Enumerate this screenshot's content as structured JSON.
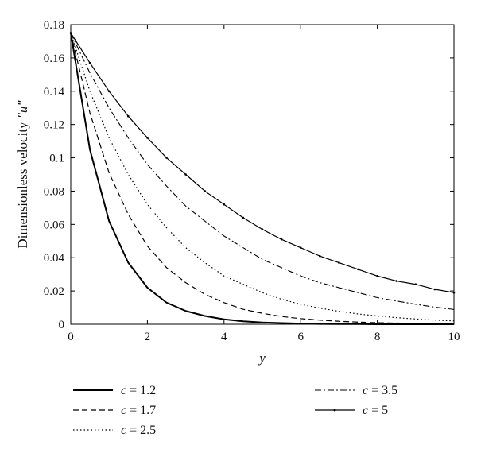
{
  "chart_data": {
    "type": "line",
    "xlabel": "y",
    "ylabel_prefix": "Dimensionless velocity ",
    "ylabel_var": "\"u\"",
    "xlim": [
      0,
      10
    ],
    "ylim": [
      0,
      0.18
    ],
    "xticks": [
      0,
      2,
      4,
      6,
      8,
      10
    ],
    "xtick_labels": [
      "0",
      "2",
      "4",
      "6",
      "8",
      "10"
    ],
    "yticks": [
      0,
      0.02,
      0.04,
      0.06,
      0.08,
      0.1,
      0.12,
      0.14,
      0.16,
      0.18
    ],
    "ytick_labels": [
      "0",
      "0.02",
      "0.04",
      "0.06",
      "0.08",
      "0.1",
      "0.12",
      "0.14",
      "0.16",
      "0.18"
    ],
    "grid": false,
    "legend_position": "below",
    "x": [
      0,
      0.5,
      1,
      1.5,
      2,
      2.5,
      3,
      3.5,
      4,
      4.5,
      5,
      5.5,
      6,
      6.5,
      7,
      7.5,
      8,
      8.5,
      9,
      9.5,
      10
    ],
    "series": [
      {
        "name": "c = 1.2",
        "var": "c",
        "rest": " = 1.2",
        "style": "solid",
        "values": [
          0.175,
          0.105,
          0.062,
          0.037,
          0.022,
          0.013,
          0.008,
          0.005,
          0.003,
          0.0018,
          0.0011,
          0.0007,
          0.0004,
          0.0002,
          0.0001,
          0.0001,
          0,
          0,
          0,
          0,
          0
        ]
      },
      {
        "name": "c = 1.7",
        "var": "c",
        "rest": " = 1.7",
        "style": "dashed",
        "values": [
          0.175,
          0.127,
          0.091,
          0.066,
          0.047,
          0.034,
          0.025,
          0.018,
          0.013,
          0.009,
          0.0066,
          0.0047,
          0.0034,
          0.0025,
          0.0018,
          0.0013,
          0.0009,
          0.0007,
          0.0005,
          0.0003,
          0.0002
        ]
      },
      {
        "name": "c = 2.5",
        "var": "c",
        "rest": " = 2.5",
        "style": "dotted",
        "values": [
          0.175,
          0.14,
          0.112,
          0.09,
          0.072,
          0.058,
          0.046,
          0.037,
          0.029,
          0.024,
          0.019,
          0.015,
          0.012,
          0.0097,
          0.0078,
          0.0062,
          0.005,
          0.004,
          0.0032,
          0.0025,
          0.002
        ]
      },
      {
        "name": "c = 3.5",
        "var": "c",
        "rest": " = 3.5",
        "style": "dashdot",
        "values": [
          0.175,
          0.151,
          0.13,
          0.112,
          0.096,
          0.083,
          0.071,
          0.062,
          0.053,
          0.046,
          0.039,
          0.034,
          0.029,
          0.025,
          0.022,
          0.019,
          0.016,
          0.014,
          0.012,
          0.0103,
          0.0089
        ]
      },
      {
        "name": "c = 5",
        "var": "c",
        "rest": " = 5",
        "style": "solid-marker",
        "values": [
          0.175,
          0.157,
          0.14,
          0.125,
          0.112,
          0.1,
          0.09,
          0.08,
          0.072,
          0.064,
          0.057,
          0.051,
          0.046,
          0.041,
          0.037,
          0.033,
          0.029,
          0.026,
          0.024,
          0.021,
          0.019
        ]
      }
    ]
  }
}
